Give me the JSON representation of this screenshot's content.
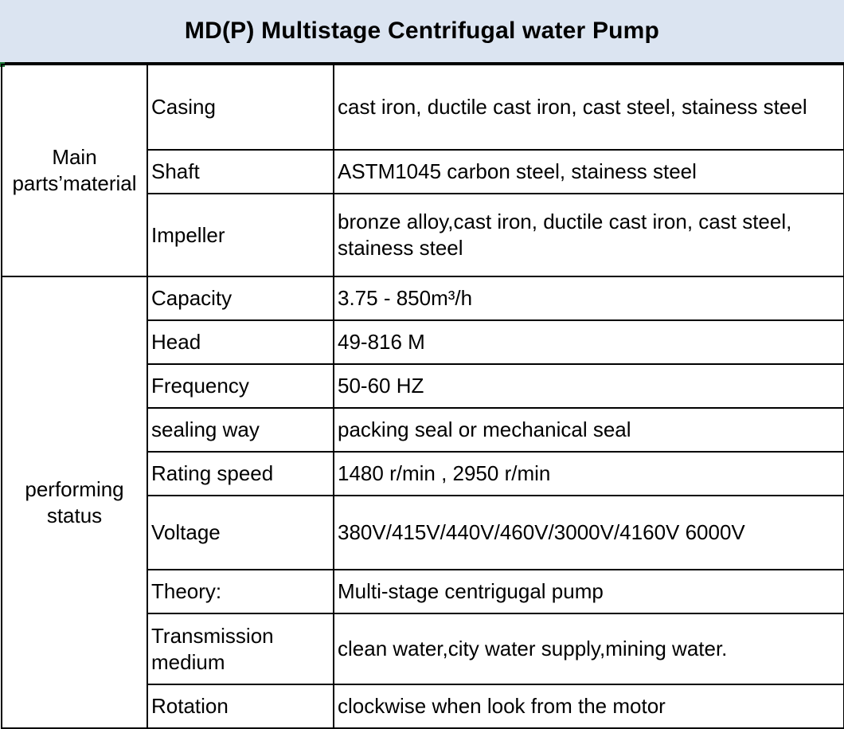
{
  "title": "MD(P) Multistage Centrifugal water Pump",
  "groups": [
    {
      "label": "Main parts’material",
      "rows": [
        {
          "param": "Casing",
          "value": "cast iron, ductile cast iron, cast steel, stainess steel"
        },
        {
          "param": "Shaft",
          "value": "ASTM1045 carbon steel, stainess steel"
        },
        {
          "param": "Impeller",
          "value": "bronze alloy,cast iron, ductile cast iron, cast steel, stainess steel"
        }
      ]
    },
    {
      "label": "performing status",
      "rows": [
        {
          "param": "Capacity",
          "value": "3.75 - 850m³/h"
        },
        {
          "param": "Head",
          "value": "49-816 M"
        },
        {
          "param": "Frequency",
          "value": "50-60 HZ"
        },
        {
          "param": "sealing way",
          "value": "packing seal or mechanical seal"
        },
        {
          "param": "Rating speed",
          "value": "1480 r/min , 2950 r/min"
        },
        {
          "param": "Voltage",
          "value": "380V/415V/440V/460V/3000V/4160V 6000V"
        },
        {
          "param": "Theory:",
          "value": "Multi-stage centrigugal pump"
        },
        {
          "param": "Transmission medium",
          "value": "clean water,city water supply,mining water."
        },
        {
          "param": "Rotation",
          "value": "clockwise when look from the motor"
        }
      ]
    }
  ]
}
